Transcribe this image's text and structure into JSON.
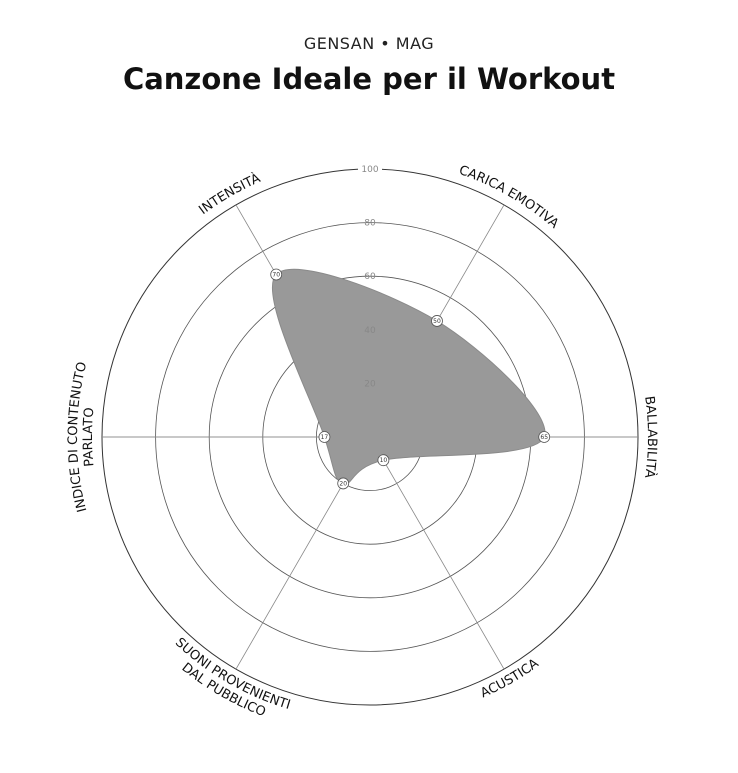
{
  "header": {
    "brand": "GENSAN • MAG",
    "title": "Canzone Ideale per il Workout"
  },
  "chart_data": {
    "type": "radar",
    "title": "Canzone Ideale per il Workout",
    "axes": [
      {
        "lines": [
          "CARICA EMOTIVA"
        ],
        "value": 50
      },
      {
        "lines": [
          "BALLABILITÀ"
        ],
        "value": 65
      },
      {
        "lines": [
          "ACUSTICA"
        ],
        "value": 10
      },
      {
        "lines": [
          "SUONI PROVENIENTI",
          "DAL PUBBLICO"
        ],
        "value": 20
      },
      {
        "lines": [
          "INDICE DI CONTENUTO",
          "PARLATO"
        ],
        "value": 17
      },
      {
        "lines": [
          "INTENSITÀ"
        ],
        "value": 70
      }
    ],
    "ticks": [
      20,
      40,
      60,
      80,
      100
    ],
    "range": [
      0,
      100
    ],
    "fill_color": "#999999"
  }
}
